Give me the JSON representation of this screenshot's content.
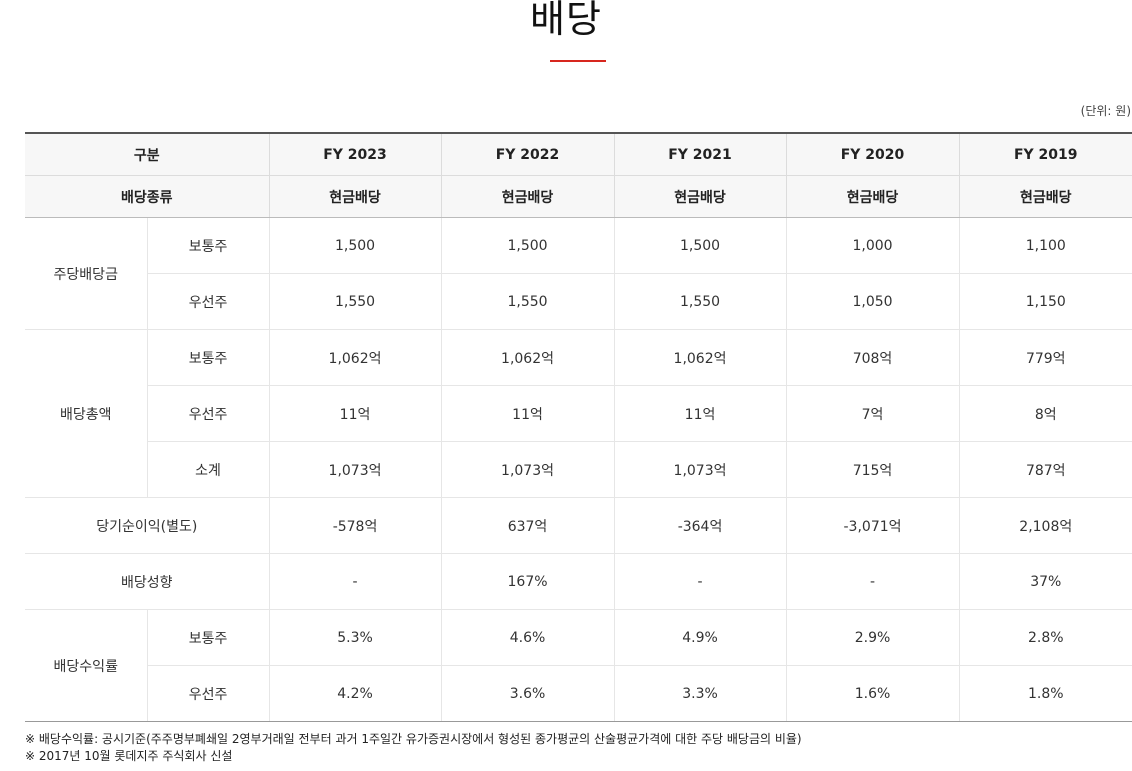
{
  "title": "배당",
  "unit": "(단위: 원)",
  "header": {
    "col_label": "구분",
    "years": [
      "FY 2023",
      "FY 2022",
      "FY 2021",
      "FY 2020",
      "FY 2019"
    ],
    "type_label": "배당종류",
    "types": [
      "현금배당",
      "현금배당",
      "현금배당",
      "현금배당",
      "현금배당"
    ]
  },
  "rows": {
    "dps": {
      "label": "주당배당금",
      "common": {
        "label": "보통주",
        "values": [
          "1,500",
          "1,500",
          "1,500",
          "1,000",
          "1,100"
        ]
      },
      "preferred": {
        "label": "우선주",
        "values": [
          "1,550",
          "1,550",
          "1,550",
          "1,050",
          "1,150"
        ]
      }
    },
    "total": {
      "label": "배당총액",
      "common": {
        "label": "보통주",
        "values": [
          "1,062억",
          "1,062억",
          "1,062억",
          "708억",
          "779억"
        ]
      },
      "preferred": {
        "label": "우선주",
        "values": [
          "11억",
          "11억",
          "11억",
          "7억",
          "8억"
        ]
      },
      "subtotal": {
        "label": "소계",
        "values": [
          "1,073억",
          "1,073억",
          "1,073억",
          "715억",
          "787억"
        ]
      }
    },
    "net_income": {
      "label": "당기순이익(별도)",
      "values": [
        "-578억",
        "637억",
        "-364억",
        "-3,071억",
        "2,108억"
      ]
    },
    "payout": {
      "label": "배당성향",
      "values": [
        "-",
        "167%",
        "-",
        "-",
        "37%"
      ]
    },
    "yield": {
      "label": "배당수익률",
      "common": {
        "label": "보통주",
        "values": [
          "5.3%",
          "4.6%",
          "4.9%",
          "2.9%",
          "2.8%"
        ]
      },
      "preferred": {
        "label": "우선주",
        "values": [
          "4.2%",
          "3.6%",
          "3.3%",
          "1.6%",
          "1.8%"
        ]
      }
    }
  },
  "notes": [
    "※ 배당수익률: 공시기준(주주명부폐쇄일 2영부거래일 전부터 과거 1주일간 유가증권시장에서 형성된 종가평균의 산술평균가격에 대한 주당 배당금의 비율)",
    "※ 2017년 10월 롯데지주 주식회사 신설"
  ]
}
